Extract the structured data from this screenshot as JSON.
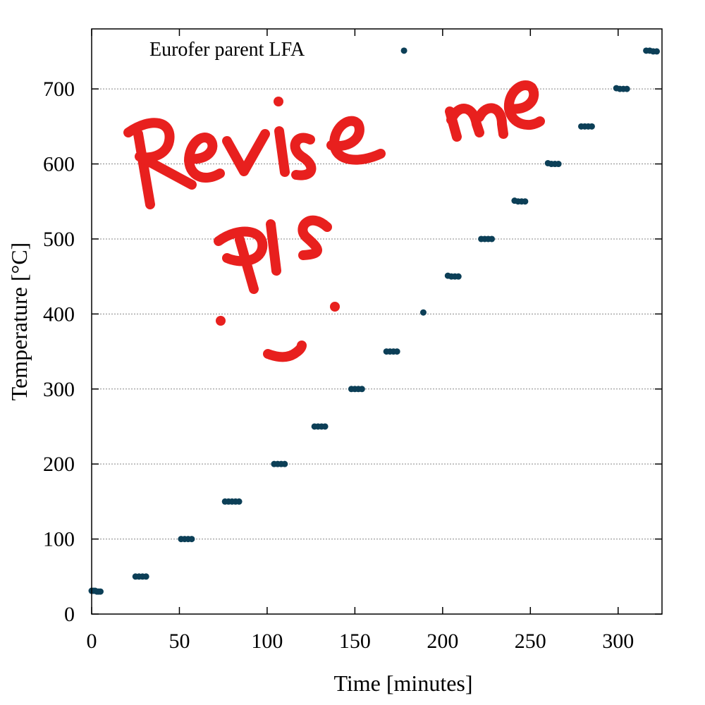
{
  "chart_data": {
    "type": "scatter",
    "xlabel": "Time [minutes]",
    "ylabel": "Temperature [°C]",
    "xlim": [
      0,
      325
    ],
    "ylim": [
      0,
      780
    ],
    "xticks": [
      0,
      50,
      100,
      150,
      200,
      250,
      300
    ],
    "yticks": [
      0,
      100,
      200,
      300,
      400,
      500,
      600,
      700
    ],
    "grid": "horizontal dotted",
    "legend_position": "top-left",
    "series": [
      {
        "name": "Eurofer parent LFA",
        "color": "#0c3f57",
        "marker": "filled-circle",
        "points": [
          [
            0,
            31
          ],
          [
            1,
            31
          ],
          [
            2,
            31
          ],
          [
            3,
            30
          ],
          [
            4,
            30
          ],
          [
            5,
            30
          ],
          [
            25,
            50
          ],
          [
            27,
            50
          ],
          [
            29,
            50
          ],
          [
            31,
            50
          ],
          [
            51,
            100
          ],
          [
            53,
            100
          ],
          [
            55,
            100
          ],
          [
            57,
            100
          ],
          [
            76,
            150
          ],
          [
            78,
            150
          ],
          [
            80,
            150
          ],
          [
            82,
            150
          ],
          [
            84,
            150
          ],
          [
            104,
            200
          ],
          [
            106,
            200
          ],
          [
            108,
            200
          ],
          [
            110,
            200
          ],
          [
            127,
            250
          ],
          [
            129,
            250
          ],
          [
            131,
            250
          ],
          [
            133,
            250
          ],
          [
            148,
            300
          ],
          [
            150,
            300
          ],
          [
            152,
            300
          ],
          [
            154,
            300
          ],
          [
            168,
            350
          ],
          [
            170,
            350
          ],
          [
            172,
            350
          ],
          [
            174,
            350
          ],
          [
            178,
            751
          ],
          [
            189,
            402
          ],
          [
            203,
            451
          ],
          [
            205,
            450
          ],
          [
            207,
            450
          ],
          [
            209,
            450
          ],
          [
            222,
            500
          ],
          [
            224,
            500
          ],
          [
            226,
            500
          ],
          [
            228,
            500
          ],
          [
            241,
            551
          ],
          [
            243,
            550
          ],
          [
            245,
            550
          ],
          [
            247,
            550
          ],
          [
            260,
            601
          ],
          [
            262,
            600
          ],
          [
            264,
            600
          ],
          [
            266,
            600
          ],
          [
            279,
            650
          ],
          [
            281,
            650
          ],
          [
            283,
            650
          ],
          [
            285,
            650
          ],
          [
            299,
            701
          ],
          [
            301,
            700
          ],
          [
            303,
            700
          ],
          [
            305,
            700
          ],
          [
            316,
            751
          ],
          [
            318,
            751
          ],
          [
            320,
            750
          ],
          [
            322,
            750
          ]
        ]
      }
    ]
  },
  "annotation": {
    "text": "Revise me pls",
    "color": "#e8201e"
  }
}
